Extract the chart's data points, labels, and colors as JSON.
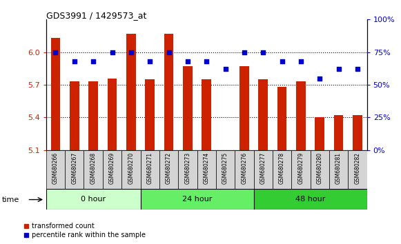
{
  "title": "GDS3991 / 1429573_at",
  "samples": [
    "GSM680266",
    "GSM680267",
    "GSM680268",
    "GSM680269",
    "GSM680270",
    "GSM680271",
    "GSM680272",
    "GSM680273",
    "GSM680274",
    "GSM680275",
    "GSM680276",
    "GSM680277",
    "GSM680278",
    "GSM680279",
    "GSM680280",
    "GSM680281",
    "GSM680282"
  ],
  "transformed_count": [
    6.13,
    5.73,
    5.73,
    5.76,
    6.17,
    5.75,
    6.17,
    5.87,
    5.75,
    5.1,
    5.87,
    5.75,
    5.68,
    5.73,
    5.4,
    5.42,
    5.42
  ],
  "percentile_rank": [
    75,
    68,
    68,
    75,
    75,
    68,
    75,
    68,
    68,
    62,
    75,
    75,
    68,
    68,
    55,
    62,
    62
  ],
  "groups": [
    {
      "label": "0 hour",
      "start": 0,
      "end": 5,
      "color": "#ccffcc"
    },
    {
      "label": "24 hour",
      "start": 5,
      "end": 11,
      "color": "#66ee66"
    },
    {
      "label": "48 hour",
      "start": 11,
      "end": 17,
      "color": "#33cc33"
    }
  ],
  "ylim_left": [
    5.1,
    6.3
  ],
  "ylim_right": [
    0,
    100
  ],
  "yticks_left": [
    5.1,
    5.4,
    5.7,
    6.0
  ],
  "yticks_right": [
    0,
    25,
    50,
    75,
    100
  ],
  "bar_color": "#cc2200",
  "dot_color": "#0000cc",
  "bar_bottom": 5.1,
  "background_color": "#ffffff",
  "label_color_left": "#cc2200",
  "label_color_right": "#0000cc",
  "legend_bar_label": "transformed count",
  "legend_dot_label": "percentile rank within the sample",
  "time_label": "time"
}
